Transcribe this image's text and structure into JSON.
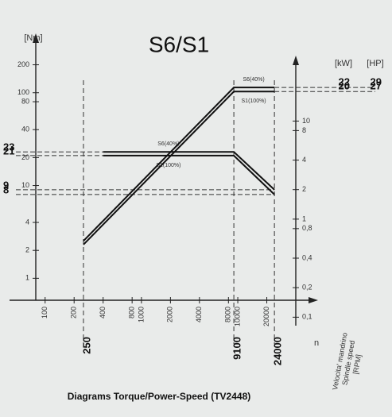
{
  "chart_data": {
    "type": "line",
    "title": "S6/S1",
    "caption": "Diagrams Torque/Power-Speed (TV2448)",
    "y_label": "[Nm]",
    "y2_label": "[kW]",
    "y3_label": "[HP]",
    "x_label": "n",
    "x_side_label": [
      "Velocita' mandrino",
      "Spindle speed",
      "[RPM]"
    ],
    "log_x": true,
    "log_y": true,
    "log_y2": true,
    "xlim": [
      80,
      40000
    ],
    "xticks": [
      100,
      200,
      400,
      800,
      1000,
      2000,
      4000,
      8000,
      10000,
      20000
    ],
    "ylim": [
      0.58,
      300
    ],
    "yticks": [
      1,
      2,
      4,
      10,
      20,
      40,
      80,
      100,
      200
    ],
    "y2lim": [
      0.09,
      55
    ],
    "y2ticks": [
      {
        "value": 0.1,
        "label": "0,1"
      },
      {
        "value": 0.2,
        "label": "0,2"
      },
      {
        "value": 0.4,
        "label": "0,4"
      },
      {
        "value": 0.8,
        "label": "0,8"
      },
      1,
      2,
      4,
      8,
      10
    ],
    "series": [
      {
        "name": "S6(40%)",
        "color": "#111111",
        "x": [
          400,
          9100,
          24000
        ],
        "values": [
          23,
          23,
          9
        ]
      },
      {
        "name": "S1(100%)",
        "color": "#111111",
        "x": [
          400,
          9100,
          24000
        ],
        "values": [
          21,
          21,
          8
        ]
      },
      {
        "name": "S6(40%)",
        "color": "#111111",
        "axis": "y2",
        "x": [
          250,
          9100,
          24000
        ],
        "values": [
          0.6,
          22,
          22
        ]
      },
      {
        "name": "S1(100%)",
        "color": "#111111",
        "axis": "y2",
        "x": [
          250,
          9100,
          24000
        ],
        "values": [
          0.55,
          20,
          20
        ]
      }
    ],
    "handwritten": {
      "torque": [
        23,
        21,
        9,
        8
      ],
      "power_kw": [
        22,
        20
      ],
      "power_hp": [
        29,
        27
      ],
      "speed": [
        250,
        9100,
        24000
      ]
    }
  }
}
